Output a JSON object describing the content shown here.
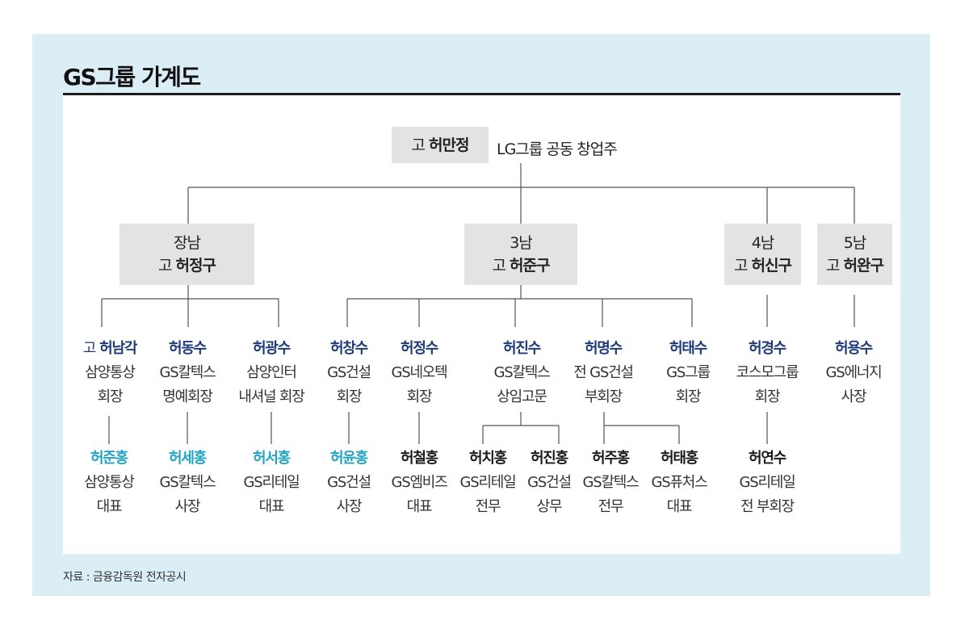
{
  "title": "GS그룹 가계도",
  "source": "자료 : 금융감독원 전자공시",
  "colors": {
    "background": "#dbeef5",
    "box": "#e3e3e3",
    "navy": "#1f3c78",
    "cyan": "#22a5c4",
    "black": "#1a1a1a"
  },
  "founder": {
    "prefix": "고",
    "name": "허만정",
    "note": "LG그룹 공동 창업주"
  },
  "sons": [
    {
      "rank": "장남",
      "prefix": "고",
      "name": "허정구"
    },
    {
      "rank": "3남",
      "prefix": "고",
      "name": "허준구"
    },
    {
      "rank": "4남",
      "prefix": "고",
      "name": "허신구"
    },
    {
      "rank": "5남",
      "prefix": "고",
      "name": "허완구"
    }
  ],
  "second_generation": [
    {
      "prefix": "고",
      "name": "허남각",
      "lines": [
        "삼양통상",
        "회장"
      ],
      "color": "navy"
    },
    {
      "prefix": "",
      "name": "허동수",
      "lines": [
        "GS칼텍스",
        "명예회장"
      ],
      "color": "navy"
    },
    {
      "prefix": "",
      "name": "허광수",
      "lines": [
        "삼양인터",
        "내셔널 회장"
      ],
      "color": "navy"
    },
    {
      "prefix": "",
      "name": "허창수",
      "lines": [
        "GS건설",
        "회장"
      ],
      "color": "navy"
    },
    {
      "prefix": "",
      "name": "허정수",
      "lines": [
        "GS네오텍",
        "회장"
      ],
      "color": "navy"
    },
    {
      "prefix": "",
      "name": "허진수",
      "lines": [
        "GS칼텍스",
        "상임고문"
      ],
      "color": "navy"
    },
    {
      "prefix": "",
      "name": "허명수",
      "lines": [
        "전 GS건설",
        "부회장"
      ],
      "color": "navy"
    },
    {
      "prefix": "",
      "name": "허태수",
      "lines": [
        "GS그룹",
        "회장"
      ],
      "color": "navy"
    },
    {
      "prefix": "",
      "name": "허경수",
      "lines": [
        "코스모그룹",
        "회장"
      ],
      "color": "navy"
    },
    {
      "prefix": "",
      "name": "허용수",
      "lines": [
        "GS에너지",
        "사장"
      ],
      "color": "navy"
    }
  ],
  "third_generation": [
    {
      "prefix": "",
      "name": "허준홍",
      "lines": [
        "삼양통상",
        "대표"
      ],
      "color": "cyan"
    },
    {
      "prefix": "",
      "name": "허세홍",
      "lines": [
        "GS칼텍스",
        "사장"
      ],
      "color": "cyan"
    },
    {
      "prefix": "",
      "name": "허서홍",
      "lines": [
        "GS리테일",
        "대표"
      ],
      "color": "cyan"
    },
    {
      "prefix": "",
      "name": "허윤홍",
      "lines": [
        "GS건설",
        "사장"
      ],
      "color": "cyan"
    },
    {
      "prefix": "",
      "name": "허철홍",
      "lines": [
        "GS엠비즈",
        "대표"
      ],
      "color": "black"
    },
    {
      "prefix": "",
      "name": "허치홍",
      "lines": [
        "GS리테일",
        "전무"
      ],
      "color": "black"
    },
    {
      "prefix": "",
      "name": "허진홍",
      "lines": [
        "GS건설",
        "상무"
      ],
      "color": "black"
    },
    {
      "prefix": "",
      "name": "허주홍",
      "lines": [
        "GS칼텍스",
        "전무"
      ],
      "color": "black"
    },
    {
      "prefix": "",
      "name": "허태홍",
      "lines": [
        "GS퓨처스",
        "대표"
      ],
      "color": "black"
    },
    {
      "prefix": "",
      "name": "허연수",
      "lines": [
        "GS리테일",
        "전 부회장"
      ],
      "color": "black"
    }
  ]
}
